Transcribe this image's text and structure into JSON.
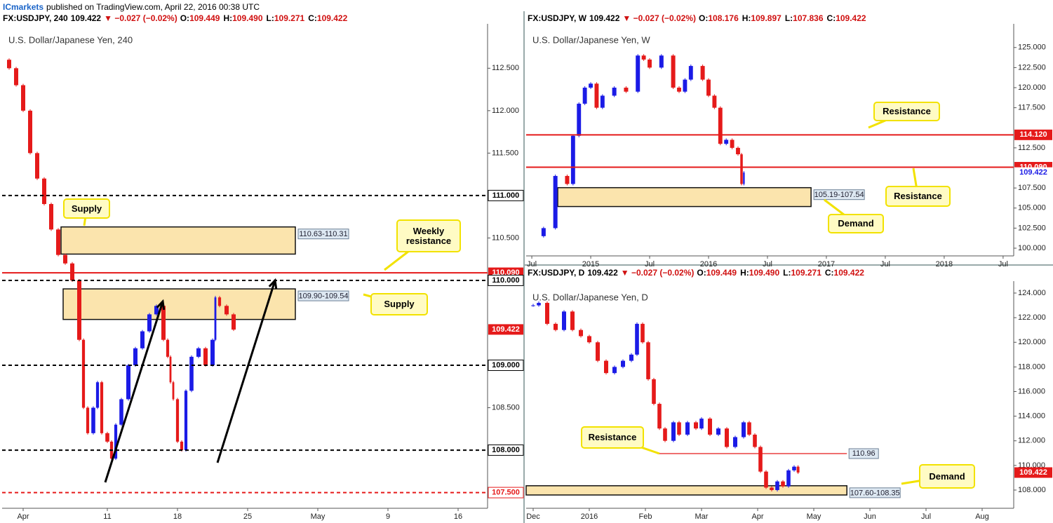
{
  "publisher": "ICmarkets",
  "published": "published on TradingView.com, April 22, 2016 00:38 UTC",
  "chart_data": [
    {
      "type": "candlestick",
      "header": {
        "symbol": "FX:USDJPY, 240",
        "last": "109.422",
        "change": "▼ −0.027 (−0.02%)",
        "ohlc": [
          {
            "k": "O:",
            "v": "109.449"
          },
          {
            "k": "H:",
            "v": "109.490"
          },
          {
            "k": "L:",
            "v": "109.271"
          },
          {
            "k": "C:",
            "v": "109.422"
          }
        ]
      },
      "title": "U.S. Dollar/Japanese Yen, 240",
      "x": [
        -1.5,
        -1,
        -0.5,
        0,
        0.5,
        1,
        1.5,
        2,
        2.5,
        3,
        3.5,
        4,
        4.3,
        4.6,
        5,
        5.3,
        5.6,
        6,
        6.3,
        6.6,
        7,
        7.5,
        8,
        8.5,
        9,
        9.5,
        10,
        10.3,
        10.5,
        10.7,
        11,
        11.3,
        11.6,
        12,
        12.5,
        13,
        13.5,
        13.7,
        14,
        14.5,
        15
      ],
      "values": [
        112.6,
        112.5,
        112.3,
        112.0,
        111.5,
        111.2,
        110.9,
        110.6,
        110.3,
        110.2,
        110.0,
        109.3,
        108.5,
        108.2,
        108.5,
        108.8,
        108.2,
        108.1,
        107.9,
        108.3,
        108.6,
        109.0,
        109.2,
        109.4,
        109.6,
        109.7,
        109.3,
        109.1,
        108.8,
        108.6,
        108.1,
        108.0,
        108.7,
        109.1,
        109.2,
        109.0,
        109.3,
        109.8,
        109.7,
        109.6,
        109.42
      ],
      "up_color": "#1b1be6",
      "down_color": "#e51a1a",
      "xlim": [
        -1.5,
        33.1
      ],
      "ylim": [
        107.315,
        112.99
      ],
      "xticks": [
        {
          "value": 0,
          "label": "Apr"
        },
        {
          "value": 6,
          "label": "11"
        },
        {
          "value": 11,
          "label": "18"
        },
        {
          "value": 16,
          "label": "25"
        },
        {
          "value": 21,
          "label": "May"
        },
        {
          "value": 26,
          "label": "9"
        },
        {
          "value": 31,
          "label": "16"
        }
      ],
      "yticks": [
        {
          "value": 112.5,
          "label": "112.500"
        },
        {
          "value": 112,
          "label": "112.000"
        },
        {
          "value": 111.5,
          "label": "111.500"
        },
        {
          "value": 110.5,
          "label": "110.500"
        },
        {
          "value": 108.5,
          "label": "108.500"
        }
      ],
      "zones": [
        {
          "low": 110.31,
          "high": 110.63,
          "x0": 2.7,
          "x1": 19.4,
          "label": "110.63-110.31"
        },
        {
          "low": 109.54,
          "high": 109.9,
          "x0": 2.85,
          "x1": 19.4,
          "label": "109.90-109.54"
        }
      ],
      "levels": [
        {
          "value": 111,
          "label": "111.000",
          "color": "#000000",
          "line": "dashed",
          "box": "outline"
        },
        {
          "value": 110.09,
          "label": "110.090",
          "color": "#e51a1a",
          "line": "solid",
          "box": "fill"
        },
        {
          "value": 110,
          "label": "110.000",
          "color": "#000000",
          "line": "dashed",
          "box": "outline"
        },
        {
          "value": 109,
          "label": "109.000",
          "color": "#000000",
          "line": "dashed",
          "box": "outline"
        },
        {
          "value": 108,
          "label": "108.000",
          "color": "#000000",
          "line": "dashed",
          "box": "outline"
        },
        {
          "value": 107.5,
          "label": "107.500",
          "color": "#e51a1a",
          "line": "dashed",
          "box": "outline"
        },
        {
          "value": 109.422,
          "label": "109.422",
          "color": "#e51a1a",
          "line": "none",
          "box": "fill"
        }
      ],
      "callouts": [
        "Supply",
        "Weekly resistance",
        "Supply"
      ]
    },
    {
      "type": "candlestick",
      "header": {
        "symbol": "FX:USDJPY, W",
        "last": "109.422",
        "change": "▼ −0.027 (−0.02%)",
        "ohlc": [
          {
            "k": "O:",
            "v": "108.176"
          },
          {
            "k": "H:",
            "v": "109.897"
          },
          {
            "k": "L:",
            "v": "107.836"
          },
          {
            "k": "C:",
            "v": "109.422"
          }
        ]
      },
      "title": "U.S. Dollar/Japanese Yen, W",
      "x": [
        2014.5,
        2014.6,
        2014.7,
        2014.8,
        2014.85,
        2014.9,
        2014.95,
        2015.0,
        2015.05,
        2015.1,
        2015.2,
        2015.3,
        2015.4,
        2015.45,
        2015.5,
        2015.6,
        2015.7,
        2015.75,
        2015.8,
        2015.85,
        2015.95,
        2016.0,
        2016.05,
        2016.1,
        2016.15,
        2016.2,
        2016.25,
        2016.28,
        2016.3
      ],
      "values": [
        101.5,
        102.5,
        109.0,
        108.0,
        114.0,
        118.0,
        120.0,
        120.5,
        117.5,
        119.0,
        120.0,
        119.5,
        124.0,
        123.5,
        122.5,
        124.0,
        120.0,
        119.5,
        121.0,
        122.7,
        121.0,
        119.0,
        117.5,
        113.0,
        113.5,
        112.5,
        111.7,
        108.0,
        109.42
      ],
      "up_color": "#1b1be6",
      "down_color": "#e51a1a",
      "xlim": [
        2014.452,
        2018.59
      ],
      "ylim": [
        99.04,
        127.6
      ],
      "xticks": [
        {
          "value": 2014.5,
          "label": "Jul"
        },
        2015,
        {
          "value": 2015.5,
          "label": "Jul"
        },
        2016,
        {
          "value": 2016.5,
          "label": "Jul"
        },
        2017,
        {
          "value": 2017.5,
          "label": "Jul"
        },
        2018,
        {
          "value": 2018.5,
          "label": "Jul"
        }
      ],
      "yticks": [
        {
          "value": 125,
          "label": "125.000"
        },
        {
          "value": 122.5,
          "label": "122.500"
        },
        {
          "value": 120,
          "label": "120.000"
        },
        {
          "value": 117.5,
          "label": "117.500"
        },
        {
          "value": 112.5,
          "label": "112.500"
        },
        {
          "value": 107.5,
          "label": "107.500"
        },
        {
          "value": 105,
          "label": "105.000"
        },
        {
          "value": 102.5,
          "label": "102.500"
        },
        {
          "value": 100,
          "label": "100.000"
        }
      ],
      "zones": [
        {
          "low": 105.19,
          "high": 107.54,
          "x0": 2014.72,
          "x1": 2016.87,
          "label": "105.19-107.54"
        }
      ],
      "levels": [
        {
          "value": 114.12,
          "label": "114.120",
          "color": "#e51a1a",
          "line": "solid",
          "box": "fill"
        },
        {
          "value": 110.09,
          "label": "110.090",
          "color": "#e51a1a",
          "line": "solid",
          "box": "fill"
        },
        {
          "value": 109.422,
          "label": "109.422",
          "color": "#1b1be6",
          "line": "none",
          "box": "plain"
        }
      ],
      "callouts": [
        "Resistance",
        "Resistance",
        "Demand"
      ]
    },
    {
      "type": "candlestick",
      "header": {
        "symbol": "FX:USDJPY, D",
        "last": "109.422",
        "change": "▼ −0.027 (−0.02%)",
        "ohlc": [
          {
            "k": "O:",
            "v": "109.449"
          },
          {
            "k": "H:",
            "v": "109.490"
          },
          {
            "k": "L:",
            "v": "109.271"
          },
          {
            "k": "C:",
            "v": "109.422"
          }
        ]
      },
      "title": "U.S. Dollar/Japanese Yen, D",
      "x": [
        -0.1,
        0,
        0.1,
        0.25,
        0.4,
        0.55,
        0.7,
        0.85,
        1.0,
        1.15,
        1.3,
        1.45,
        1.6,
        1.75,
        1.85,
        1.95,
        2.05,
        2.15,
        2.25,
        2.35,
        2.5,
        2.6,
        2.75,
        2.9,
        3.0,
        3.15,
        3.3,
        3.45,
        3.6,
        3.75,
        3.85,
        3.95,
        4.05,
        4.15,
        4.25,
        4.35,
        4.45,
        4.55,
        4.65,
        4.72
      ],
      "values": [
        123.0,
        123.0,
        123.2,
        121.5,
        121.0,
        122.5,
        121.0,
        120.5,
        120.0,
        118.5,
        117.5,
        118.0,
        118.5,
        119.0,
        121.5,
        120.0,
        117.0,
        115.0,
        113.0,
        112.0,
        113.5,
        112.5,
        113.5,
        113.0,
        113.8,
        112.5,
        113.0,
        111.5,
        112.3,
        113.5,
        112.5,
        111.5,
        109.5,
        108.2,
        108.0,
        108.7,
        108.3,
        109.6,
        109.9,
        109.42
      ],
      "up_color": "#1b1be6",
      "down_color": "#e51a1a",
      "xlim": [
        -0.125,
        8.5625
      ],
      "ylim": [
        106.52,
        124.74
      ],
      "xticks": [
        {
          "value": 0,
          "label": "Dec"
        },
        {
          "value": 1,
          "label": "2016"
        },
        {
          "value": 2,
          "label": "Feb"
        },
        {
          "value": 3,
          "label": "Mar"
        },
        {
          "value": 4,
          "label": "Apr"
        },
        {
          "value": 5,
          "label": "May"
        },
        {
          "value": 6,
          "label": "Jun"
        },
        {
          "value": 7,
          "label": "Jul"
        },
        {
          "value": 8,
          "label": "Aug"
        }
      ],
      "yticks": [
        {
          "value": 124,
          "label": "124.000"
        },
        {
          "value": 122,
          "label": "122.000"
        },
        {
          "value": 120,
          "label": "120.000"
        },
        {
          "value": 118,
          "label": "118.000"
        },
        {
          "value": 116,
          "label": "116.000"
        },
        {
          "value": 114,
          "label": "114.000"
        },
        {
          "value": 112,
          "label": "112.000"
        },
        {
          "value": 110,
          "label": "110.000"
        },
        {
          "value": 108,
          "label": "108.000"
        }
      ],
      "zones": [
        {
          "low": 107.6,
          "high": 108.35,
          "x0": -0.125,
          "x1": 5.59,
          "label": "107.60-108.35"
        }
      ],
      "levels": [
        {
          "value": 110.96,
          "label": "110.96",
          "color": "#e51a1a",
          "line": "solid",
          "box": "tag",
          "x0": 2.21,
          "x1": 5.59
        },
        {
          "value": 109.422,
          "label": "109.422",
          "color": "#e51a1a",
          "line": "none",
          "box": "fill"
        }
      ],
      "callouts": [
        "Resistance",
        "Demand"
      ]
    }
  ]
}
